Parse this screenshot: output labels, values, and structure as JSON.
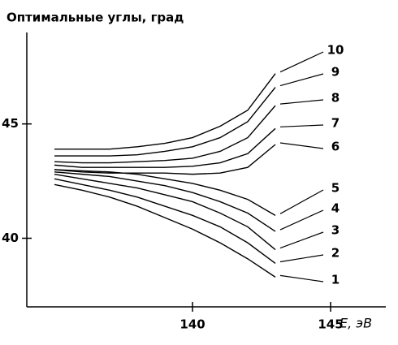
{
  "chart_data": {
    "type": "line",
    "title": "Оптимальные углы, град",
    "x_label": "E, эВ",
    "x": [
      135,
      136,
      137,
      138,
      139,
      140,
      141,
      142,
      143
    ],
    "series": [
      {
        "name": "1",
        "color": "#000000",
        "values": [
          42.35,
          42.1,
          41.8,
          41.4,
          40.9,
          40.4,
          39.8,
          39.1,
          38.3
        ]
      },
      {
        "name": "2",
        "color": "#000000",
        "values": [
          42.6,
          42.35,
          42.1,
          41.8,
          41.4,
          41.0,
          40.5,
          39.8,
          38.9
        ]
      },
      {
        "name": "3",
        "color": "#000000",
        "values": [
          42.8,
          42.6,
          42.4,
          42.2,
          41.9,
          41.6,
          41.1,
          40.5,
          39.5
        ]
      },
      {
        "name": "4",
        "color": "#000000",
        "values": [
          42.9,
          42.8,
          42.7,
          42.5,
          42.3,
          42.0,
          41.6,
          41.1,
          40.3
        ]
      },
      {
        "name": "5",
        "color": "#000000",
        "values": [
          43.0,
          42.95,
          42.9,
          42.8,
          42.6,
          42.4,
          42.1,
          41.7,
          41.0
        ]
      },
      {
        "name": "6",
        "color": "#000000",
        "values": [
          43.0,
          42.9,
          42.85,
          42.85,
          42.85,
          42.8,
          42.85,
          43.1,
          44.1
        ]
      },
      {
        "name": "7",
        "color": "#000000",
        "values": [
          43.2,
          43.1,
          43.1,
          43.1,
          43.1,
          43.15,
          43.3,
          43.7,
          44.8
        ]
      },
      {
        "name": "8",
        "color": "#000000",
        "values": [
          43.35,
          43.3,
          43.3,
          43.35,
          43.4,
          43.5,
          43.8,
          44.4,
          45.8
        ]
      },
      {
        "name": "9",
        "color": "#000000",
        "values": [
          43.6,
          43.6,
          43.6,
          43.65,
          43.8,
          44.0,
          44.4,
          45.1,
          46.6
        ]
      },
      {
        "name": "10",
        "color": "#000000",
        "values": [
          43.9,
          43.9,
          43.9,
          44.0,
          44.15,
          44.4,
          44.9,
          45.6,
          47.2
        ]
      }
    ],
    "xlim": [
      134,
      147
    ],
    "ylim": [
      37,
      49
    ],
    "xticks": [
      140,
      145
    ],
    "yticks": [
      40,
      45
    ]
  }
}
